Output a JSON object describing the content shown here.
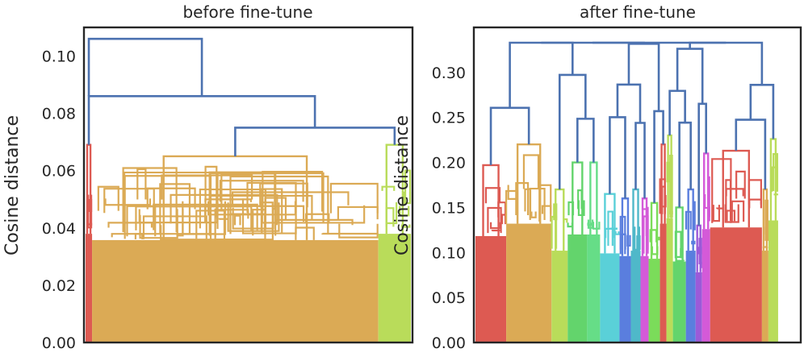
{
  "chart_data": [
    {
      "type": "dendrogram",
      "title": "before fine-tune",
      "xlabel": "",
      "ylabel": "Cosine distance",
      "ylim": [
        0,
        0.11
      ],
      "yticks": [
        0.0,
        0.02,
        0.04,
        0.06,
        0.08,
        0.1
      ],
      "ytick_labels": [
        "0.00",
        "0.02",
        "0.04",
        "0.06",
        "0.08",
        "0.10"
      ],
      "grid": false,
      "link_color": "#4c72b0",
      "top_links": [
        {
          "height": 0.106,
          "left": "red cluster",
          "right": "merge at 0.086"
        },
        {
          "height": 0.086,
          "left": "red cluster",
          "right": "merge at 0.075"
        },
        {
          "height": 0.075,
          "left": "orange cluster",
          "right": "light-green cluster"
        }
      ],
      "clusters": [
        {
          "name": "red",
          "color": "#dd5a52",
          "top_height": 0.069,
          "leaf_fraction": 0.02
        },
        {
          "name": "orange",
          "color": "#dbaa55",
          "top_height": 0.065,
          "leaf_fraction": 0.88
        },
        {
          "name": "light-green",
          "color": "#b9dc5a",
          "top_height": 0.069,
          "leaf_fraction": 0.1
        }
      ]
    },
    {
      "type": "dendrogram",
      "title": "after fine-tune",
      "xlabel": "",
      "ylabel": "Cosine distance",
      "ylim": [
        0,
        0.35
      ],
      "yticks": [
        0.0,
        0.05,
        0.1,
        0.15,
        0.2,
        0.25,
        0.3
      ],
      "ytick_labels": [
        "0.00",
        "0.05",
        "0.10",
        "0.15",
        "0.20",
        "0.25",
        "0.30"
      ],
      "grid": false,
      "link_color": "#4c72b0",
      "root_height": 0.333,
      "clusters": [
        {
          "name": "red-1",
          "color": "#dd5a52",
          "top_height": 0.197,
          "leaf_fraction": 0.095
        },
        {
          "name": "orange",
          "color": "#dbaa55",
          "top_height": 0.22,
          "leaf_fraction": 0.14
        },
        {
          "name": "light-green-1",
          "color": "#b9dc5a",
          "top_height": 0.17,
          "leaf_fraction": 0.05
        },
        {
          "name": "green-1",
          "color": "#63d46c",
          "top_height": 0.2,
          "leaf_fraction": 0.06
        },
        {
          "name": "green-2",
          "color": "#66dd87",
          "top_height": 0.2,
          "leaf_fraction": 0.04
        },
        {
          "name": "cyan",
          "color": "#5ad0d8",
          "top_height": 0.165,
          "leaf_fraction": 0.06
        },
        {
          "name": "blue",
          "color": "#5a7ede",
          "top_height": 0.16,
          "leaf_fraction": 0.035
        },
        {
          "name": "teal",
          "color": "#4fb8c9",
          "top_height": 0.17,
          "leaf_fraction": 0.03
        },
        {
          "name": "magenta-1",
          "color": "#d45ad8",
          "top_height": 0.16,
          "leaf_fraction": 0.025
        },
        {
          "name": "green-3",
          "color": "#7bdc5a",
          "top_height": 0.155,
          "leaf_fraction": 0.035
        },
        {
          "name": "red-2",
          "color": "#dd5a52",
          "top_height": 0.22,
          "leaf_fraction": 0.02
        },
        {
          "name": "light-green-2",
          "color": "#b9dc5a",
          "top_height": 0.23,
          "leaf_fraction": 0.02
        },
        {
          "name": "green-4",
          "color": "#63d46c",
          "top_height": 0.15,
          "leaf_fraction": 0.04
        },
        {
          "name": "blue-2",
          "color": "#5a7ede",
          "top_height": 0.17,
          "leaf_fraction": 0.03
        },
        {
          "name": "purple",
          "color": "#9b5ad8",
          "top_height": 0.13,
          "leaf_fraction": 0.02
        },
        {
          "name": "magenta-2",
          "color": "#d45ad8",
          "top_height": 0.21,
          "leaf_fraction": 0.025
        },
        {
          "name": "red-3",
          "color": "#dd5a52",
          "top_height": 0.213,
          "leaf_fraction": 0.16
        },
        {
          "name": "orange-2",
          "color": "#dbaa55",
          "top_height": 0.17,
          "leaf_fraction": 0.02
        },
        {
          "name": "light-green-3",
          "color": "#b9dc5a",
          "top_height": 0.226,
          "leaf_fraction": 0.03
        }
      ]
    }
  ]
}
